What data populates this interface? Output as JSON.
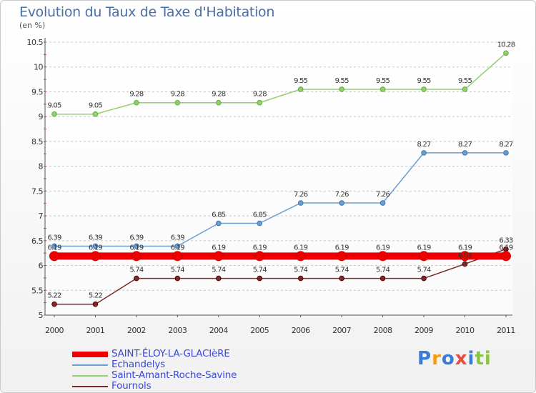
{
  "header": {
    "title": "Evolution du Taux de Taxe d'Habitation",
    "unit": "(en %)"
  },
  "chart_data": {
    "type": "line",
    "title": "Evolution du Taux de Taxe d'Habitation",
    "ylabel": "(en %)",
    "xlabel": "",
    "x": [
      "2000",
      "2001",
      "2002",
      "2003",
      "2004",
      "2005",
      "2006",
      "2007",
      "2008",
      "2009",
      "2010",
      "2011"
    ],
    "ylim": [
      5,
      10.5
    ],
    "yticks": [
      "5",
      "5.5",
      "6",
      "6.5",
      "7",
      "7.5",
      "8",
      "8.5",
      "9",
      "9.5",
      "10",
      "10.5"
    ],
    "grid": "horizontal dashed",
    "legend_position": "bottom-left",
    "series": [
      {
        "name": "SAINT-ÉLOY-LA-GLACIèRE",
        "color": "#ee0000",
        "values": [
          6.19,
          6.19,
          6.19,
          6.19,
          6.19,
          6.19,
          6.19,
          6.19,
          6.19,
          6.19,
          6.19,
          6.19
        ],
        "labels": [
          "6.19",
          "6.19",
          "6.19",
          "6.19",
          "6.19",
          "6.19",
          "6.19",
          "6.19",
          "6.19",
          "6.19",
          "6.19",
          "6.19"
        ]
      },
      {
        "name": "Echandelys",
        "color": "#6a9ed2",
        "values": [
          6.39,
          6.39,
          6.39,
          6.39,
          6.85,
          6.85,
          7.26,
          7.26,
          7.26,
          8.27,
          8.27,
          8.27
        ],
        "labels": [
          "6.39",
          "6.39",
          "6.39",
          "6.39",
          "6.85",
          "6.85",
          "7.26",
          "7.26",
          "7.26",
          "8.27",
          "8.27",
          "8.27"
        ]
      },
      {
        "name": "Saint-Amant-Roche-Savine",
        "color": "#8fd16a",
        "values": [
          9.05,
          9.05,
          9.28,
          9.28,
          9.28,
          9.28,
          9.55,
          9.55,
          9.55,
          9.55,
          9.55,
          10.28
        ],
        "labels": [
          "9.05",
          "9.05",
          "9.28",
          "9.28",
          "9.28",
          "9.28",
          "9.55",
          "9.55",
          "9.55",
          "9.55",
          "9.55",
          "10.28"
        ]
      },
      {
        "name": "Fournols",
        "color": "#7a2a2a",
        "values": [
          5.22,
          5.22,
          5.74,
          5.74,
          5.74,
          5.74,
          5.74,
          5.74,
          5.74,
          5.74,
          6.03,
          6.33
        ],
        "labels": [
          "5.22",
          "5.22",
          "5.74",
          "5.74",
          "5.74",
          "5.74",
          "5.74",
          "5.74",
          "5.74",
          "5.74",
          "6.03",
          "6.33"
        ]
      }
    ]
  },
  "logo": {
    "letters": [
      "P",
      "r",
      "o",
      "x",
      "i",
      "t",
      "i"
    ],
    "colors": [
      "#3a7bd5",
      "#f39c12",
      "#3a7bd5",
      "#e74c3c",
      "#3a7bd5",
      "#8cc63f",
      "#8cc63f"
    ]
  }
}
